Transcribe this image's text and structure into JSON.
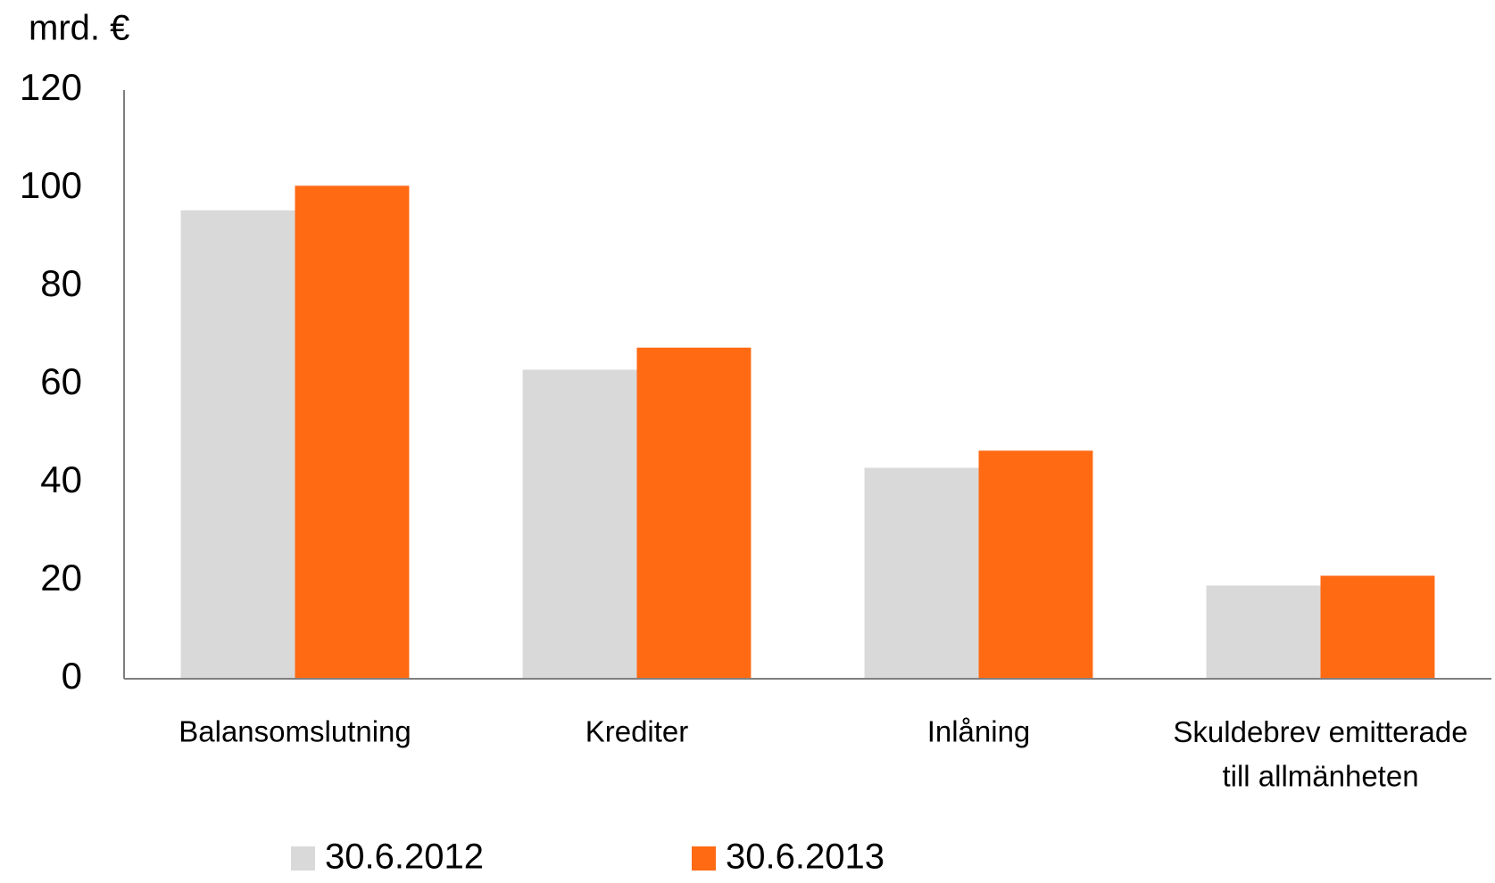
{
  "chart_data": {
    "type": "bar",
    "y_axis_label": "mrd. €",
    "categories": [
      "Balansomslutning",
      "Krediter",
      "Inlåning",
      "Skuldebrev emitterade\ntill allmänheten"
    ],
    "series": [
      {
        "name": "30.6.2012",
        "color": "#d9d9d9",
        "values": [
          95.5,
          63,
          43,
          19
        ]
      },
      {
        "name": "30.6.2013",
        "color": "#ff6a13",
        "values": [
          100.5,
          67.5,
          46.5,
          21
        ]
      }
    ],
    "ylim": [
      0,
      120
    ],
    "yticks": [
      0,
      20,
      40,
      60,
      80,
      100,
      120
    ],
    "grid": false,
    "legend": "bottom"
  }
}
